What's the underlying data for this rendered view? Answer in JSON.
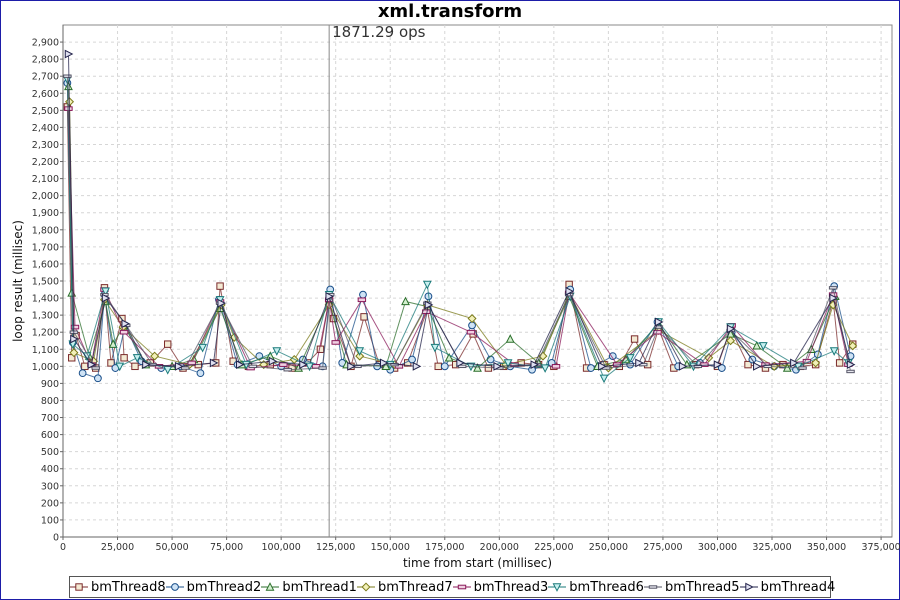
{
  "chart_data": {
    "type": "line",
    "title": "xml.transform",
    "annotation": {
      "x": 122000,
      "label": "1871.29 ops"
    },
    "xlabel": "time from start (millisec)",
    "ylabel": "loop result (millisec)",
    "xlim": [
      0,
      380000
    ],
    "ylim": [
      0,
      3000
    ],
    "xticks": [
      0,
      25000,
      50000,
      75000,
      100000,
      125000,
      150000,
      175000,
      200000,
      225000,
      250000,
      275000,
      300000,
      325000,
      350000,
      375000
    ],
    "xtick_labels": [
      "0",
      "25,000",
      "50,000",
      "75,000",
      "100,000",
      "125,000",
      "150,000",
      "175,000",
      "200,000",
      "225,000",
      "250,000",
      "275,000",
      "300,000",
      "325,000",
      "350,000",
      "375,000"
    ],
    "yticks": [
      0,
      100,
      200,
      300,
      400,
      500,
      600,
      700,
      800,
      900,
      1000,
      1100,
      1200,
      1300,
      1400,
      1500,
      1600,
      1700,
      1800,
      1900,
      2000,
      2100,
      2200,
      2300,
      2400,
      2500,
      2600,
      2700,
      2800,
      2900
    ],
    "ytick_labels": [
      "0",
      "100",
      "200",
      "300",
      "400",
      "500",
      "600",
      "700",
      "800",
      "900",
      "1,000",
      "1,100",
      "1,200",
      "1,300",
      "1,400",
      "1,500",
      "1,600",
      "1,700",
      "1,800",
      "1,900",
      "2,000",
      "2,100",
      "2,200",
      "2,300",
      "2,400",
      "2,500",
      "2,600",
      "2,700",
      "2,800",
      "2,900"
    ],
    "grid": true,
    "legend_position": "bottom",
    "series": [
      {
        "name": "bmThread8",
        "marker": "square",
        "color": "#7a2a2a",
        "fill": "#f4ead4",
        "x": [
          2000,
          4000,
          6000,
          10000,
          15000,
          19000,
          22000,
          27000,
          28000,
          33000,
          40000,
          48000,
          55000,
          62000,
          70000,
          72000,
          78000,
          85000,
          95000,
          105000,
          112000,
          118000,
          122000,
          124000,
          132000,
          138000,
          145000,
          152000,
          158000,
          167000,
          172000,
          180000,
          188000,
          195000,
          202000,
          210000,
          218000,
          225000,
          232000,
          240000,
          248000,
          255000,
          262000,
          268000,
          273000,
          280000,
          290000,
          300000,
          306000,
          314000,
          322000,
          330000,
          338000,
          345000,
          353000,
          356000,
          362000
        ],
        "y": [
          2520,
          1050,
          1180,
          1000,
          990,
          1460,
          1020,
          1280,
          1050,
          1000,
          1020,
          1130,
          990,
          1010,
          1020,
          1470,
          1030,
          1000,
          1010,
          990,
          1020,
          1100,
          1390,
          1280,
          1000,
          1290,
          1010,
          990,
          1020,
          1330,
          1000,
          1010,
          1190,
          990,
          1000,
          1020,
          1010,
          1000,
          1480,
          990,
          1010,
          1000,
          1160,
          1010,
          1220,
          990,
          1010,
          1000,
          1220,
          1010,
          990,
          1010,
          1000,
          1010,
          1390,
          1020,
          1130
        ]
      },
      {
        "name": "bmThread2",
        "marker": "circle",
        "color": "#1a4f8a",
        "fill": "#cfe3f5",
        "x": [
          2000,
          4500,
          9000,
          16000,
          19000,
          24000,
          28500,
          36000,
          45000,
          54000,
          63000,
          71500,
          80000,
          90000,
          100000,
          110000,
          119000,
          122500,
          128000,
          137500,
          144000,
          150000,
          160000,
          167500,
          175000,
          187500,
          196000,
          205000,
          215000,
          224000,
          232500,
          242000,
          252000,
          260000,
          272500,
          282000,
          292000,
          302000,
          306500,
          316000,
          326000,
          336000,
          346000,
          353500,
          361000
        ],
        "y": [
          2660,
          1140,
          960,
          930,
          1420,
          990,
          1240,
          1030,
          990,
          1000,
          960,
          1390,
          1010,
          1060,
          1000,
          1040,
          1000,
          1450,
          1020,
          1420,
          1000,
          980,
          1040,
          1410,
          1000,
          1240,
          1040,
          1000,
          980,
          1020,
          1450,
          990,
          1060,
          1010,
          1260,
          1000,
          1020,
          990,
          1200,
          1040,
          1000,
          980,
          1070,
          1470,
          1060
        ]
      },
      {
        "name": "bmThread1",
        "marker": "triangle-up",
        "color": "#2b6e2b",
        "fill": "#d4f0d0",
        "x": [
          2500,
          4000,
          12000,
          19500,
          23000,
          28000,
          38000,
          50000,
          60000,
          72000,
          82000,
          95000,
          108000,
          122000,
          130000,
          148000,
          157000,
          167000,
          177000,
          190000,
          205000,
          218000,
          232000,
          245000,
          258000,
          273000,
          286000,
          306000,
          318000,
          332000,
          343000,
          354000
        ],
        "y": [
          2640,
          1430,
          1060,
          1380,
          1130,
          1240,
          1010,
          1000,
          1040,
          1340,
          1010,
          1060,
          990,
          1380,
          1010,
          1000,
          1380,
          1350,
          1050,
          990,
          1160,
          1020,
          1410,
          1000,
          1040,
          1250,
          1010,
          1190,
          1120,
          990,
          1100,
          1410
        ]
      },
      {
        "name": "bmThread7",
        "marker": "diamond",
        "color": "#7a7a1a",
        "fill": "#f2f0b8",
        "x": [
          3000,
          5000,
          14000,
          19000,
          27500,
          42000,
          58000,
          72500,
          78500,
          92000,
          106000,
          122000,
          136000,
          152000,
          167000,
          187500,
          203000,
          220000,
          232000,
          250000,
          273000,
          296000,
          306000,
          326000,
          345000,
          353000,
          362000
        ],
        "y": [
          2550,
          1080,
          1030,
          1390,
          1230,
          1060,
          1010,
          1360,
          1170,
          1010,
          1040,
          1360,
          1060,
          1010,
          1360,
          1280,
          1010,
          1060,
          1430,
          990,
          1210,
          1050,
          1150,
          1000,
          1020,
          1360,
          1120
        ]
      },
      {
        "name": "bmThread3",
        "marker": "rect-h",
        "color": "#8a1a5a",
        "fill": "#f0d0e2",
        "x": [
          2500,
          5500,
          13000,
          19000,
          28000,
          44000,
          59000,
          72000,
          86000,
          101000,
          116000,
          122000,
          125000,
          137000,
          154000,
          166500,
          187000,
          207000,
          226000,
          232000,
          254000,
          272500,
          294000,
          306500,
          322000,
          341000,
          353000,
          360000
        ],
        "y": [
          2510,
          1230,
          1010,
          1450,
          1200,
          1000,
          1020,
          1380,
          990,
          1010,
          1000,
          1390,
          1140,
          1390,
          1000,
          1320,
          1200,
          1010,
          1000,
          1430,
          1010,
          1200,
          1010,
          1240,
          1010,
          1030,
          1420,
          1010
        ]
      },
      {
        "name": "bmThread6",
        "marker": "triangle-down",
        "color": "#1a7a7a",
        "fill": "#c8f0f0",
        "x": [
          2000,
          4500,
          11000,
          19500,
          26000,
          34000,
          48000,
          64000,
          72000,
          84000,
          98000,
          113000,
          122000,
          136000,
          150000,
          167000,
          170500,
          187000,
          204000,
          221000,
          232500,
          248000,
          260000,
          273000,
          289000,
          306000,
          321000,
          337000,
          353500,
          360000
        ],
        "y": [
          2680,
          1130,
          1060,
          1440,
          1000,
          1050,
          980,
          1110,
          1390,
          1010,
          1090,
          1000,
          1420,
          1090,
          1010,
          1480,
          1110,
          1000,
          1020,
          990,
          1410,
          930,
          1050,
          1260,
          1000,
          1230,
          1120,
          1000,
          1090,
          1020
        ]
      },
      {
        "name": "bmThread5",
        "marker": "dash",
        "color": "#555566",
        "fill": "#e6e6ee",
        "x": [
          2000,
          5000,
          15000,
          19000,
          29000,
          41000,
          56000,
          72000,
          87000,
          103000,
          119000,
          122500,
          135000,
          152000,
          167000,
          183000,
          200000,
          217000,
          232000,
          249000,
          266000,
          273000,
          291000,
          306000,
          323000,
          339000,
          353000,
          361000
        ],
        "y": [
          2700,
          1200,
          990,
          1420,
          1240,
          1010,
          990,
          1370,
          1000,
          980,
          990,
          1420,
          1000,
          1010,
          1370,
          1000,
          990,
          1010,
          1420,
          990,
          1010,
          1230,
          1000,
          1210,
          1000,
          990,
          1460,
          970
        ]
      },
      {
        "name": "bmThread4",
        "marker": "triangle-right",
        "color": "#22224a",
        "fill": "#dfe0f0",
        "x": [
          2500,
          5000,
          13000,
          19500,
          28500,
          38000,
          53000,
          69000,
          72500,
          81000,
          96000,
          110000,
          122000,
          132000,
          147000,
          162000,
          167500,
          182000,
          199000,
          216000,
          232000,
          247000,
          264000,
          273000,
          284000,
          300000,
          306000,
          318000,
          335000,
          353000,
          361000
        ],
        "y": [
          2830,
          1160,
          1010,
          1400,
          1250,
          1010,
          1000,
          1020,
          1370,
          1010,
          1030,
          1010,
          1410,
          1000,
          1020,
          1000,
          1360,
          1020,
          1000,
          1010,
          1440,
          1000,
          1020,
          1260,
          1000,
          1010,
          1220,
          1000,
          1020,
          1400,
          1010
        ]
      }
    ]
  }
}
